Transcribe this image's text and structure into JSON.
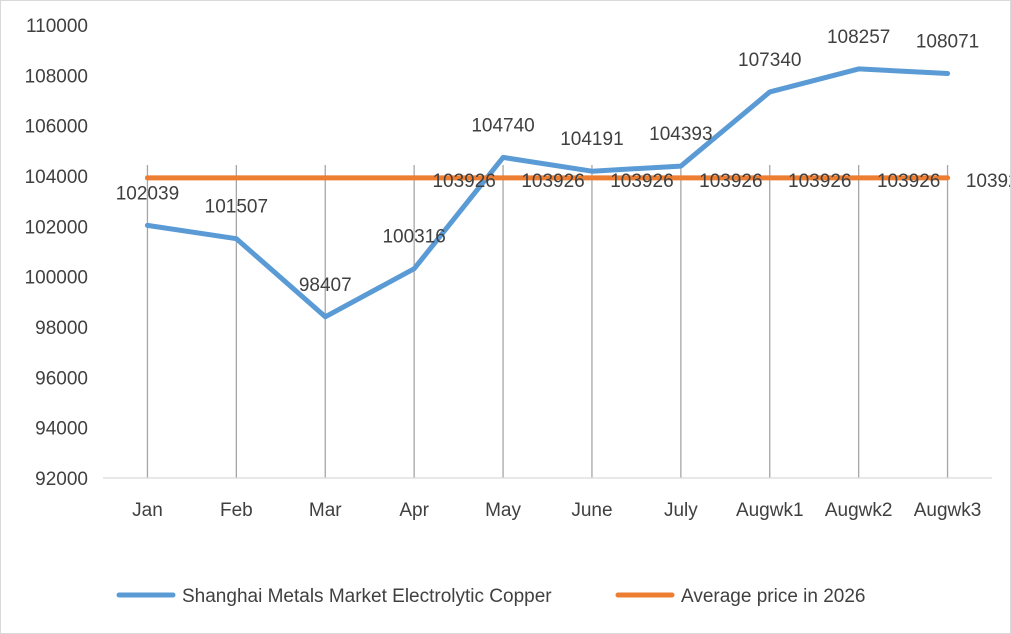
{
  "chart_data": {
    "type": "line",
    "categories": [
      "Jan",
      "Feb",
      "Mar",
      "Apr",
      "May",
      "June",
      "July",
      "Augwk1",
      "Augwk2",
      "Augwk3"
    ],
    "ylim": [
      92000,
      110000
    ],
    "yticks": [
      92000,
      94000,
      96000,
      98000,
      100000,
      102000,
      104000,
      106000,
      108000,
      110000
    ],
    "grid": "vertical",
    "legend_position": "bottom",
    "series": [
      {
        "name": "Shanghai Metals Market Electrolytic Copper",
        "color": "#5b9bd5",
        "values": [
          102039,
          101507,
          98407,
          100316,
          104740,
          104191,
          104393,
          107340,
          108257,
          108071
        ]
      },
      {
        "name": "Average price in 2026",
        "color": "#ed7d31",
        "values": [
          103926,
          103926,
          103926,
          103926,
          103926,
          103926,
          103926,
          103926,
          103926,
          103926
        ]
      }
    ]
  }
}
